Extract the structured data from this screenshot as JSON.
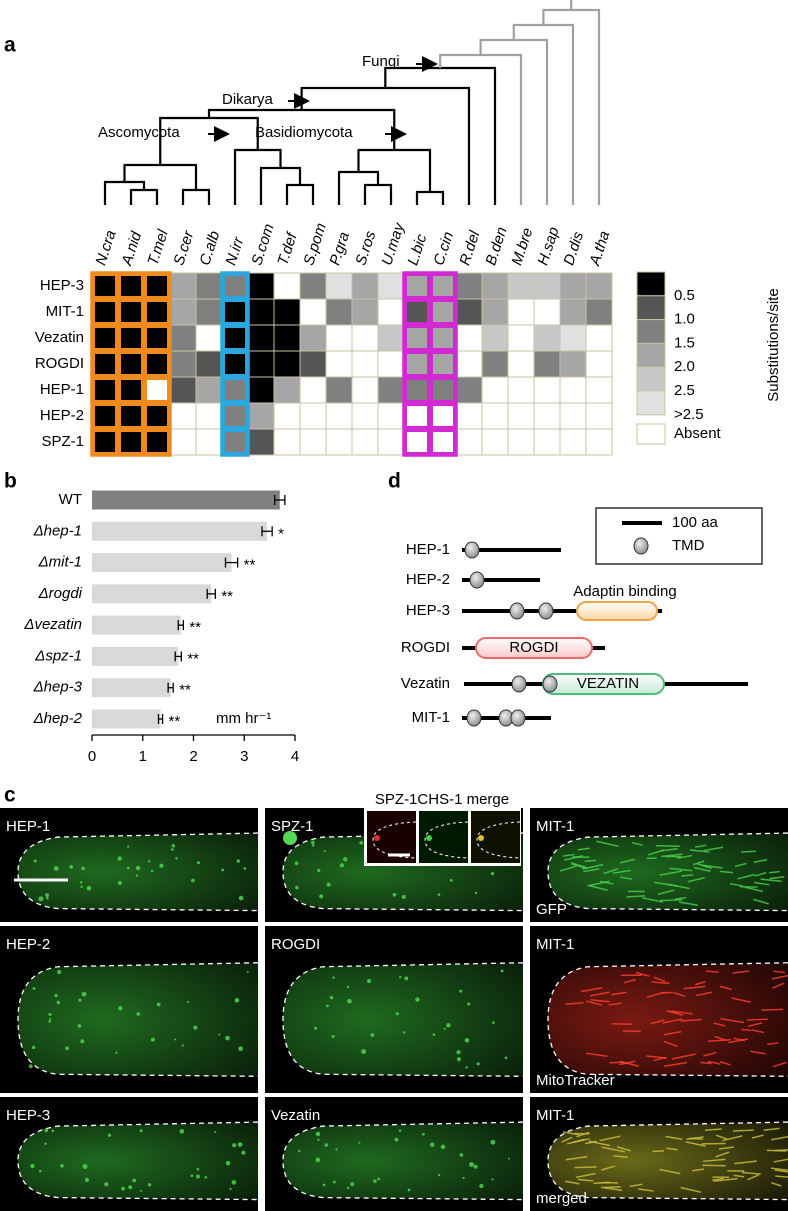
{
  "panel_labels": {
    "a": "a",
    "b": "b",
    "c": "c",
    "d": "d"
  },
  "tree": {
    "clade_labels": [
      "Fungi",
      "Dikarya",
      "Ascomycota",
      "Basidiomycota"
    ]
  },
  "chart_data": [
    {
      "type": "heatmap",
      "categories": [
        "N.cra",
        "A.nid",
        "T.mel",
        "S.cer",
        "C.alb",
        "N.irr",
        "S.com",
        "T.def",
        "S.pom",
        "P.gra",
        "S.ros",
        "U.may",
        "L.bic",
        "C.cin",
        "R.del",
        "B.den",
        "M.bre",
        "H.sap",
        "D.dis",
        "A.tha"
      ],
      "category_colors": [
        "#f08a1c",
        "#f08a1c",
        "#f08a1c",
        "#000000",
        "#000000",
        "#2aa7df",
        "#000000",
        "#000000",
        "#000000",
        "#000000",
        "#000000",
        "#000000",
        "#d22ad2",
        "#d22ad2",
        "#000000",
        "#000000",
        "#999999",
        "#999999",
        "#999999",
        "#999999"
      ],
      "rows": [
        "HEP-3",
        "MIT-1",
        "Vezatin",
        "ROGDI",
        "HEP-1",
        "HEP-2",
        "SPZ-1"
      ],
      "values": [
        [
          0.5,
          0.5,
          0.5,
          2.0,
          1.5,
          1.5,
          0.5,
          null,
          1.5,
          3,
          2.0,
          3,
          2.0,
          2.0,
          1.5,
          2.0,
          2.5,
          2.5,
          2.0,
          2.0
        ],
        [
          0.5,
          0.5,
          0.5,
          2.0,
          1.5,
          0.5,
          0.5,
          0.5,
          null,
          1.5,
          2.0,
          null,
          1.0,
          2.0,
          1.0,
          2.0,
          null,
          null,
          2.0,
          1.5
        ],
        [
          0.5,
          0.5,
          0.5,
          1.5,
          null,
          0.5,
          0.5,
          0.5,
          2.0,
          null,
          null,
          2.5,
          2.0,
          2.0,
          null,
          2.5,
          null,
          2.5,
          3,
          null
        ],
        [
          0.5,
          0.5,
          0.5,
          1.5,
          1.0,
          0.5,
          0.5,
          0.5,
          1.0,
          null,
          null,
          null,
          2.0,
          2.0,
          null,
          1.5,
          null,
          1.5,
          2.0,
          null
        ],
        [
          0.5,
          0.5,
          null,
          1.0,
          2.0,
          1.5,
          0.5,
          2.0,
          null,
          1.5,
          null,
          1.5,
          1.5,
          1.5,
          1.5,
          null,
          null,
          null,
          null,
          null
        ],
        [
          0.5,
          0.5,
          0.5,
          null,
          null,
          1.5,
          2.0,
          null,
          null,
          null,
          null,
          null,
          null,
          null,
          null,
          null,
          null,
          null,
          null,
          null
        ],
        [
          0.5,
          0.5,
          0.5,
          null,
          null,
          1.5,
          1.0,
          null,
          null,
          null,
          null,
          null,
          null,
          null,
          null,
          null,
          null,
          null,
          null,
          null
        ]
      ],
      "legend_title": "Substitutions/site",
      "legend_levels": [
        {
          "value": 0.5,
          "label": "0.5",
          "color": "#000000"
        },
        {
          "value": 1.0,
          "label": "1.0",
          "color": "#555555"
        },
        {
          "value": 1.5,
          "label": "1.5",
          "color": "#808080"
        },
        {
          "value": 2.0,
          "label": "2.0",
          "color": "#a6a6a6"
        },
        {
          "value": 2.5,
          "label": "2.5",
          "color": "#c8c8c8"
        },
        {
          "value": 3,
          "label": ">2.5",
          "color": "#e0e0e0"
        }
      ],
      "absent_label": "Absent",
      "absent_color": "#ffffff"
    },
    {
      "type": "bar",
      "orientation": "horizontal",
      "categories": [
        "WT",
        "Δhep-1",
        "Δmit-1",
        "Δrogdi",
        "Δvezatin",
        "Δspz-1",
        "Δhep-3",
        "Δhep-2"
      ],
      "values": [
        3.7,
        3.45,
        2.75,
        2.35,
        1.75,
        1.7,
        1.55,
        1.35
      ],
      "errors": [
        0.1,
        0.1,
        0.12,
        0.08,
        0.05,
        0.06,
        0.05,
        0.04
      ],
      "colors": [
        "#808080",
        "#d9d9d9",
        "#d9d9d9",
        "#d9d9d9",
        "#d9d9d9",
        "#d9d9d9",
        "#d9d9d9",
        "#d9d9d9"
      ],
      "significance": [
        null,
        "*",
        "**",
        "**",
        "**",
        "**",
        "**",
        "**"
      ],
      "xlim": [
        0,
        4
      ],
      "xticks": [
        0,
        1,
        2,
        3,
        4
      ],
      "x_unit": "mm hr⁻¹"
    }
  ],
  "domain_diagram": {
    "legend": {
      "scale": "100 aa",
      "tmd": "TMD"
    },
    "proteins": [
      "HEP-1",
      "HEP-2",
      "HEP-3",
      "ROGDI",
      "Vezatin",
      "MIT-1"
    ],
    "domains": {
      "adaptin": "Adaptin binding",
      "rogdi": "ROGDI",
      "vezatin": "VEZATIN"
    }
  },
  "micrographs": {
    "panels": [
      [
        "HEP-1",
        "SPZ-1",
        "MIT-1"
      ],
      [
        "HEP-2",
        "ROGDI",
        "MIT-1"
      ],
      [
        "HEP-3",
        "Vezatin",
        "MIT-1"
      ]
    ],
    "channel_labels": [
      "GFP",
      "MitoTracker",
      "merged"
    ],
    "inset_title": "SPZ-1CHS-1 merge"
  }
}
